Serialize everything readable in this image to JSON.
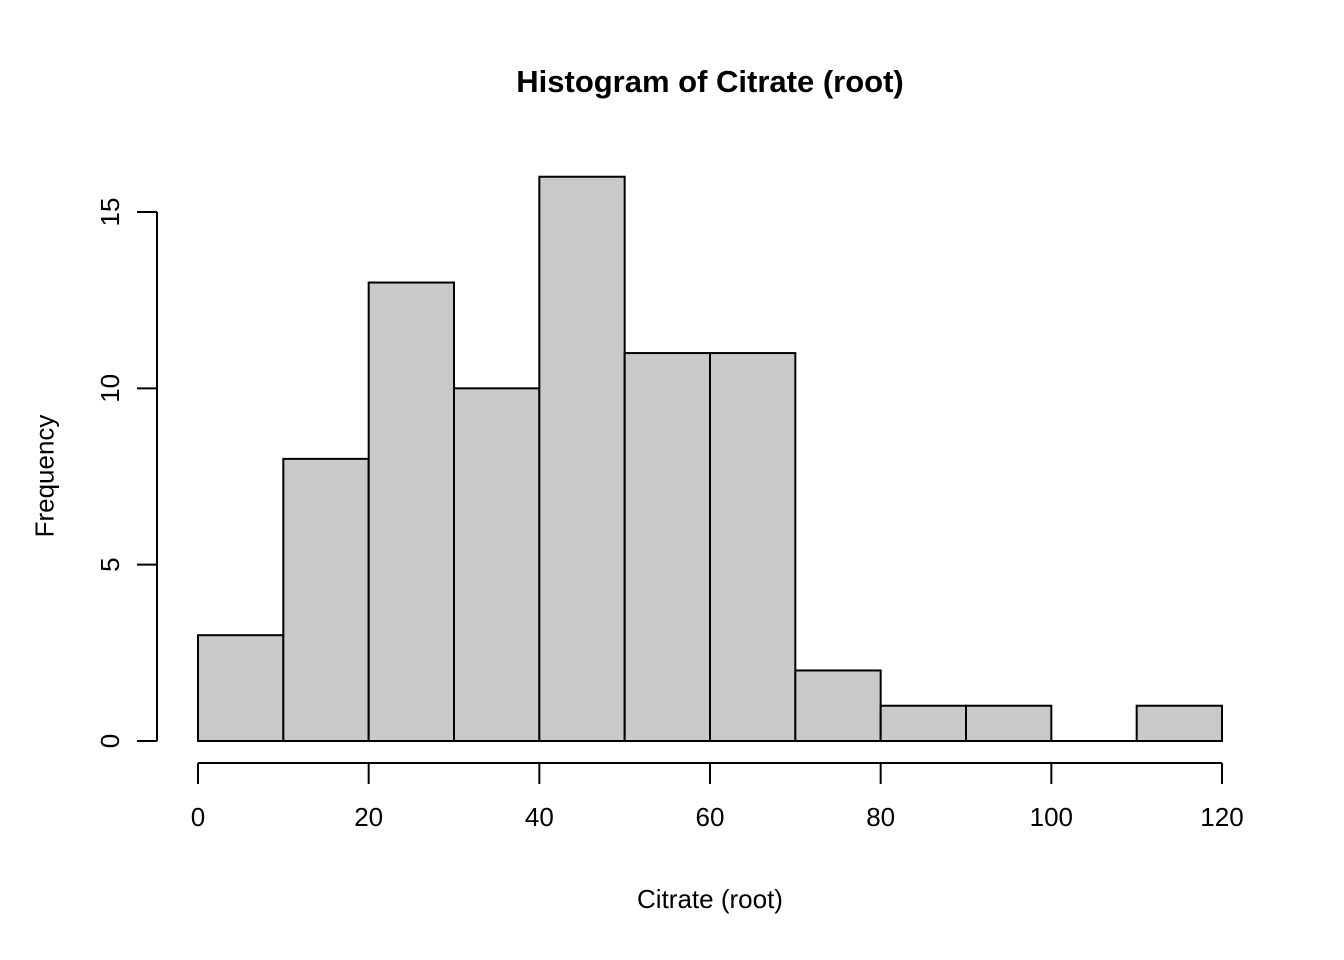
{
  "chart_data": {
    "type": "bar",
    "subtype": "histogram",
    "title": "Histogram of Citrate (root)",
    "xlabel": "Citrate (root)",
    "ylabel": "Frequency",
    "bin_start": 0,
    "bin_width": 10,
    "counts": [
      3,
      8,
      13,
      10,
      16,
      11,
      11,
      2,
      1,
      1,
      0,
      1
    ],
    "bin_edges": [
      0,
      10,
      20,
      30,
      40,
      50,
      60,
      70,
      80,
      90,
      100,
      110,
      120
    ],
    "x_ticks": [
      0,
      20,
      40,
      60,
      80,
      100,
      120
    ],
    "y_ticks": [
      0,
      5,
      10,
      15
    ],
    "xlim": [
      0,
      120
    ],
    "ylim": [
      0,
      16
    ],
    "grid": false,
    "legend": false,
    "colors": {
      "bar_fill": "#c9c9c9",
      "bar_stroke": "#000000",
      "axis": "#000000",
      "text": "#000000",
      "background": "#ffffff"
    }
  }
}
